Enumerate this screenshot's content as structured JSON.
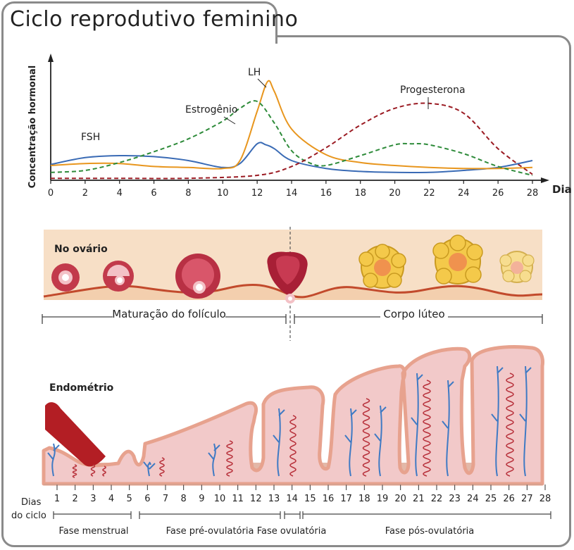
{
  "title": "Ciclo reprodutivo feminino",
  "chart": {
    "ylabel": "Concentração hormonal",
    "xlabel": "Dia",
    "xticks": [
      "0",
      "2",
      "4",
      "6",
      "8",
      "10",
      "12",
      "14",
      "16",
      "18",
      "20",
      "22",
      "24",
      "26",
      "28"
    ],
    "series_labels": {
      "fsh": "FSH",
      "lh": "LH",
      "estrogenio": "Estrogênio",
      "progesterona": "Progesterona"
    },
    "colors": {
      "fsh": "#3a6bb5",
      "lh": "#e8961e",
      "estrogenio": "#2e8b3a",
      "progesterona": "#9b1b23"
    }
  },
  "chart_data": {
    "type": "line",
    "xlabel": "Dia",
    "ylabel": "Concentração hormonal",
    "xlim": [
      0,
      28
    ],
    "ylim": [
      0,
      1
    ],
    "series": [
      {
        "name": "FSH",
        "x": [
          0,
          2,
          4,
          6,
          8,
          10,
          11,
          12,
          12.5,
          13,
          14,
          16,
          18,
          20,
          22,
          24,
          26,
          28
        ],
        "values": [
          0.16,
          0.23,
          0.25,
          0.24,
          0.2,
          0.13,
          0.17,
          0.37,
          0.36,
          0.32,
          0.2,
          0.12,
          0.09,
          0.08,
          0.08,
          0.1,
          0.13,
          0.2
        ]
      },
      {
        "name": "LH",
        "x": [
          0,
          2,
          4,
          6,
          8,
          10,
          11,
          12,
          12.6,
          13,
          14,
          16,
          18,
          20,
          22,
          24,
          26,
          28
        ],
        "values": [
          0.15,
          0.17,
          0.17,
          0.14,
          0.13,
          0.12,
          0.2,
          0.7,
          1.0,
          0.9,
          0.52,
          0.26,
          0.18,
          0.15,
          0.13,
          0.12,
          0.12,
          0.13
        ]
      },
      {
        "name": "Estrogênio",
        "x": [
          0,
          2,
          4,
          6,
          8,
          10,
          11,
          12,
          13,
          14,
          15,
          16,
          18,
          20,
          21,
          22,
          24,
          26,
          28
        ],
        "values": [
          0.08,
          0.1,
          0.18,
          0.29,
          0.42,
          0.6,
          0.73,
          0.8,
          0.58,
          0.3,
          0.18,
          0.15,
          0.25,
          0.36,
          0.37,
          0.36,
          0.27,
          0.14,
          0.05
        ]
      },
      {
        "name": "Progesterona",
        "x": [
          0,
          4,
          8,
          12,
          14,
          16,
          18,
          20,
          22,
          24,
          26,
          28
        ],
        "values": [
          0.02,
          0.02,
          0.02,
          0.05,
          0.14,
          0.33,
          0.56,
          0.73,
          0.78,
          0.68,
          0.32,
          0.06
        ]
      }
    ]
  },
  "ovary": {
    "label": "No ovário",
    "left_bracket": "Maturação do folículo",
    "right_bracket": "Corpo lúteo"
  },
  "endometrium": {
    "label": "Endométrio",
    "days_label_1": "Dias",
    "days_label_2": "do ciclo",
    "days": [
      "1",
      "2",
      "3",
      "4",
      "5",
      "6",
      "7",
      "8",
      "9",
      "10",
      "11",
      "12",
      "13",
      "14",
      "15",
      "16",
      "17",
      "18",
      "19",
      "20",
      "21",
      "22",
      "23",
      "24",
      "25",
      "26",
      "27",
      "28"
    ],
    "phases": [
      "Fase menstrual",
      "Fase pré-ovulatória",
      "Fase ovulatória",
      "Fase pós-ovulatória"
    ]
  }
}
